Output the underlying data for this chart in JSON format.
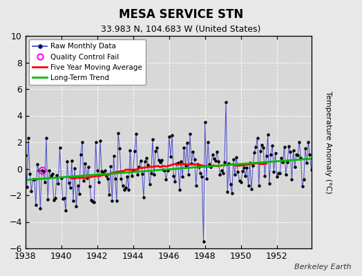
{
  "title": "MESA SERVICE STN",
  "subtitle": "33.983 N, 104.683 W (United States)",
  "ylabel": "Temperature Anomaly (°C)",
  "attribution": "Berkeley Earth",
  "ylim": [
    -6,
    10
  ],
  "xlim_start": 1938.0,
  "xlim_end": 1953.92,
  "xticks": [
    1938,
    1940,
    1942,
    1944,
    1946,
    1948,
    1950,
    1952
  ],
  "yticks": [
    -6,
    -4,
    -2,
    0,
    2,
    4,
    6,
    8,
    10
  ],
  "bg_color": "#e8e8e8",
  "plot_bg_color": "#d8d8d8",
  "grid_color": "#ffffff",
  "raw_color": "#3333cc",
  "raw_marker_color": "#000000",
  "moving_avg_color": "#ff0000",
  "trend_color": "#00bb00",
  "qc_fail_color": "#ff00ff",
  "trend_x": [
    1938.0,
    1953.92
  ],
  "trend_y": [
    -0.85,
    0.75
  ],
  "qc_fail_x": [
    1938.917
  ],
  "qc_fail_y": [
    -0.15
  ]
}
